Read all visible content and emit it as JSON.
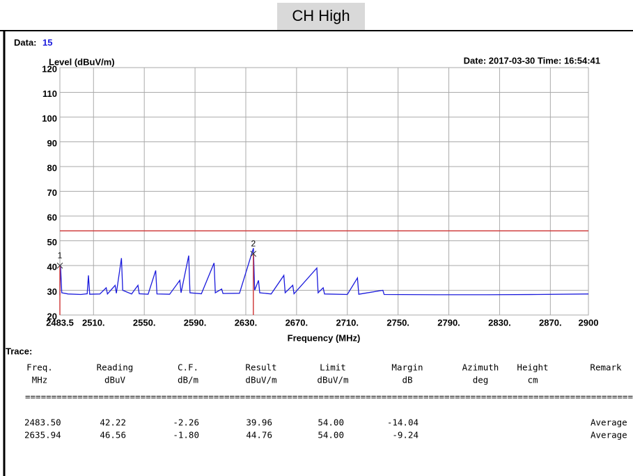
{
  "header": {
    "badge": "CH High",
    "data_label": "Data:",
    "data_value": "15",
    "date": "Date: 2017-03-30  Time: 16:54:41",
    "trace_label": "Trace:"
  },
  "chart_data": {
    "type": "line",
    "ylabel": "Level (dBuV/m)",
    "xlabel": "Frequency (MHz)",
    "xlim": [
      2483.5,
      2900
    ],
    "ylim": [
      20,
      120
    ],
    "xticks": [
      {
        "value": 2483.5,
        "label": "2483.5"
      },
      {
        "value": 2510,
        "label": "2510."
      },
      {
        "value": 2550,
        "label": "2550."
      },
      {
        "value": 2590,
        "label": "2590."
      },
      {
        "value": 2630,
        "label": "2630."
      },
      {
        "value": 2670,
        "label": "2670."
      },
      {
        "value": 2710,
        "label": "2710."
      },
      {
        "value": 2750,
        "label": "2750."
      },
      {
        "value": 2790,
        "label": "2790."
      },
      {
        "value": 2830,
        "label": "2830."
      },
      {
        "value": 2870,
        "label": "2870."
      },
      2900
    ],
    "yticks": [
      20,
      30,
      40,
      50,
      60,
      70,
      80,
      90,
      100,
      110,
      120
    ],
    "grid": true,
    "limit": {
      "value": 54,
      "color": "#d04040"
    },
    "series": [
      {
        "color": "#1a1adc",
        "x": [
          2483.5,
          2484,
          2485,
          2490,
          2500,
          2505,
          2506,
          2507,
          2515,
          2520,
          2521,
          2527,
          2528,
          2532,
          2533,
          2540,
          2545,
          2546,
          2553,
          2559,
          2560,
          2570,
          2578,
          2579,
          2585,
          2586,
          2595,
          2605,
          2606,
          2611,
          2612,
          2625,
          2636,
          2637,
          2640,
          2641,
          2650,
          2660,
          2661,
          2667,
          2668,
          2686,
          2687,
          2691,
          2692,
          2710,
          2718,
          2719,
          2738,
          2739,
          2780,
          2820,
          2860,
          2900
        ],
        "values": [
          28,
          40,
          29,
          28.5,
          28.3,
          28.6,
          36,
          28.4,
          28.5,
          31,
          28.5,
          32,
          28.8,
          43,
          30,
          28.5,
          32,
          28.6,
          28.4,
          38,
          28.5,
          28.4,
          34,
          29,
          44,
          29,
          28.6,
          41,
          29,
          30.5,
          28.7,
          28.8,
          47,
          30,
          34,
          29,
          28.5,
          36,
          29,
          32,
          28.6,
          39,
          29,
          31,
          28.5,
          28.3,
          35,
          28.4,
          30,
          28.3,
          28.2,
          28.2,
          28.3,
          28.5
        ]
      }
    ],
    "markers": [
      {
        "label": "1",
        "x": 2483.5,
        "y": 39.96,
        "color": "#d04040"
      },
      {
        "label": "2",
        "x": 2635.94,
        "y": 44.76,
        "color": "#d04040"
      }
    ]
  },
  "table": {
    "header": [
      [
        "Freq.",
        "Reading",
        "C.F.",
        "Result",
        "Limit",
        "Margin",
        "Azimuth",
        "Height",
        "Remark"
      ],
      [
        "MHz",
        "dBuV",
        "dB/m",
        "dBuV/m",
        "dBuV/m",
        "dB",
        "deg",
        "cm"
      ]
    ],
    "separator": "=====================================================================================================================",
    "rows": [
      {
        "cells": [
          "2483.50",
          "42.22",
          "-2.26",
          "39.96",
          "54.00",
          "-14.04"
        ],
        "remark": "Average"
      },
      {
        "cells": [
          "2635.94",
          "46.56",
          "-1.80",
          "44.76",
          "54.00",
          "-9.24"
        ],
        "remark": "Average"
      }
    ]
  }
}
